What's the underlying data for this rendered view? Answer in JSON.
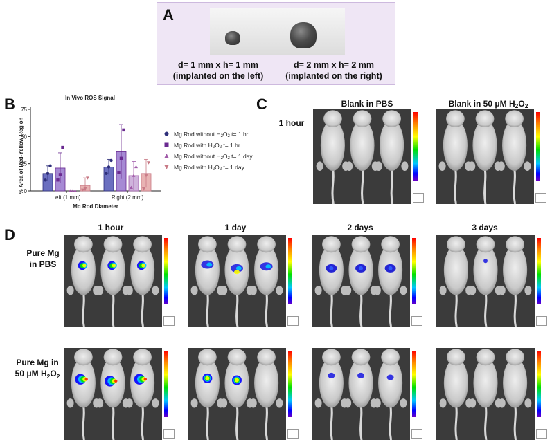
{
  "panel_labels": {
    "A": "A",
    "B": "B",
    "C": "C",
    "D": "D"
  },
  "panelA": {
    "left_caption_line1": "d= 1 mm x h= 1 mm",
    "left_caption_line2": "(implanted on the left)",
    "right_caption_line1": "d= 2 mm x h= 2 mm",
    "right_caption_line2": "(implanted on the right)"
  },
  "panelB": {
    "title": "In Vivo ROS Signal",
    "xlabel": "Mg Rod Diameter",
    "ylabel": "% Area of Red-Yellow Region",
    "legend": [
      {
        "label_pre": "Mg Rod without H",
        "label_sub": "2",
        "label_mid": "O",
        "label_sub2": "2",
        "label_post": " t= 1 hr",
        "color": "#2e2f7a",
        "marker": "circle"
      },
      {
        "label_pre": "Mg Rod with H",
        "label_sub": "2",
        "label_mid": "O",
        "label_sub2": "2",
        "label_post": " t= 1 hr",
        "color": "#6a2a90",
        "marker": "square"
      },
      {
        "label_pre": "Mg Rod without H",
        "label_sub": "2",
        "label_mid": "O",
        "label_sub2": "2",
        "label_post": " t= 1 day",
        "color": "#a05aa8",
        "marker": "triangle-up"
      },
      {
        "label_pre": "Mg Rod with H",
        "label_sub": "2",
        "label_mid": "O",
        "label_sub2": "2",
        "label_post": " t= 1 day",
        "color": "#c87a86",
        "marker": "triangle-down"
      }
    ]
  },
  "chart_data": {
    "type": "bar",
    "title": "In Vivo ROS Signal",
    "xlabel": "Mg Rod Diameter",
    "ylabel": "% Area of Red-Yellow Region",
    "categories": [
      "Left (1 mm)",
      "Right (2 mm)"
    ],
    "yticks": [
      "0",
      "25",
      "50",
      "75"
    ],
    "ylim": [
      0,
      75
    ],
    "series": [
      {
        "name": "Mg Rod without H2O2 t= 1 hr",
        "values": [
          16,
          22
        ],
        "err": [
          7,
          7
        ],
        "points": [
          [
            10,
            16,
            23
          ],
          [
            16,
            22,
            28
          ]
        ],
        "fill": "#6b6fc0",
        "edge": "#2e2f7a"
      },
      {
        "name": "Mg Rod with H2O2 t= 1 hr",
        "values": [
          21,
          36
        ],
        "err": [
          14,
          25
        ],
        "points": [
          [
            10,
            15,
            40
          ],
          [
            17,
            30,
            56
          ]
        ],
        "fill": "#a68ad4",
        "edge": "#6a2a90"
      },
      {
        "name": "Mg Rod without H2O2 t= 1 day",
        "values": [
          0,
          14
        ],
        "err": [
          0,
          13
        ],
        "points": [
          [
            0,
            0,
            0
          ],
          [
            3,
            14,
            22
          ]
        ],
        "fill": "#cfb3dc",
        "edge": "#a05aa8"
      },
      {
        "name": "Mg Rod with H2O2 t= 1 day",
        "values": [
          5,
          16
        ],
        "err": [
          7,
          13
        ],
        "points": [
          [
            1,
            2,
            12
          ],
          [
            2,
            14,
            26
          ]
        ],
        "fill": "#e8b3b3",
        "edge": "#c87a86"
      }
    ],
    "grid": false,
    "legend_position": "right"
  },
  "panelC": {
    "col1": "Blank in PBS",
    "col2_pre": "Blank in 50 μM H",
    "col2_sub": "2",
    "col2_mid": "O",
    "col2_sub2": "2",
    "row": "1 hour"
  },
  "panelD": {
    "cols": [
      "1 hour",
      "1 day",
      "2 days",
      "3 days"
    ],
    "row1_line1": "Pure Mg",
    "row1_line2": "in PBS",
    "row2_line1": "Pure Mg  in",
    "row2_line2_pre": "50 μM H",
    "row2_line2_sub": "2",
    "row2_line2_mid": "O",
    "row2_line2_sub2": "2"
  },
  "colors": {
    "panelA_bg": "#efe6f5",
    "photo_bg": "#3b3b3b"
  }
}
